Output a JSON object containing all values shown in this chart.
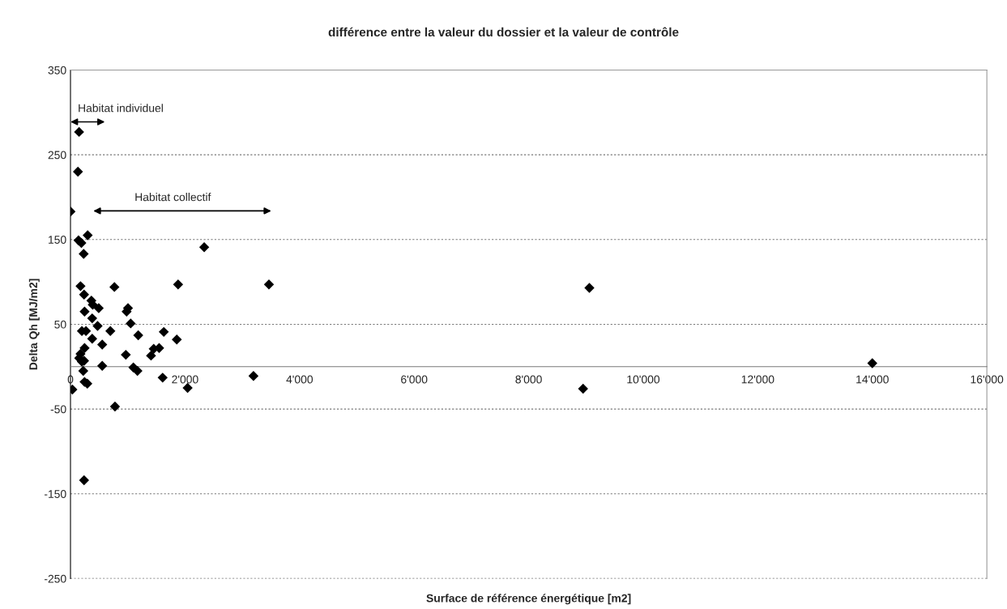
{
  "chart_data": {
    "type": "scatter",
    "title": "différence entre la valeur du dossier et la valeur de contrôle",
    "xlabel": "Surface de référence énergétique [m2]",
    "ylabel": "Delta Qh [MJ/m2]",
    "series": [
      {
        "color": "#000000",
        "x": [
          150,
          130,
          0,
          300,
          140,
          190,
          230,
          2335,
          175,
          767,
          1879,
          237,
          365,
          388,
          493,
          246,
          1004,
          980,
          379,
          473,
          1051,
          199,
          270,
          696,
          1629,
          1183,
          379,
          1856,
          554,
          246,
          1548,
          1453,
          175,
          966,
          1406,
          152,
          237,
          199,
          554,
          1098,
          1169,
          223,
          1609,
          246,
          294,
          33,
          2045,
          777,
          237,
          3465,
          3195,
          9060,
          8950,
          14000
        ],
        "values": [
          277,
          230,
          183,
          155,
          149,
          146,
          133,
          141,
          95,
          94,
          97,
          85,
          78,
          73,
          69,
          65,
          69,
          65,
          57,
          48,
          51,
          42,
          42,
          42,
          41,
          37,
          33,
          32,
          26,
          22,
          22,
          21,
          15,
          14,
          13,
          10,
          7,
          6,
          1,
          -1,
          -5,
          -5,
          -13,
          -18,
          -20,
          -27,
          -25,
          -47,
          -134,
          97,
          -11,
          93,
          -26,
          4
        ]
      }
    ],
    "marker": "diamond",
    "grid": "y",
    "legend": false,
    "xlim": [
      0,
      16000
    ],
    "ylim": [
      -250,
      350
    ],
    "xticks": [
      0,
      {
        "value": 2000,
        "label": "2'000"
      },
      {
        "value": 4000,
        "label": "4'000"
      },
      {
        "value": 6000,
        "label": "6'000"
      },
      {
        "value": 8000,
        "label": "8'000"
      },
      {
        "value": 10000,
        "label": "10'000"
      },
      {
        "value": 12000,
        "label": "12'000"
      },
      {
        "value": 14000,
        "label": "14'000"
      },
      {
        "value": 16000,
        "label": "16'000"
      }
    ],
    "yticks": [
      -250,
      -150,
      -50,
      50,
      150,
      250,
      350
    ],
    "annotations": [
      "Habitat individuel",
      "Habitat collectif"
    ]
  }
}
